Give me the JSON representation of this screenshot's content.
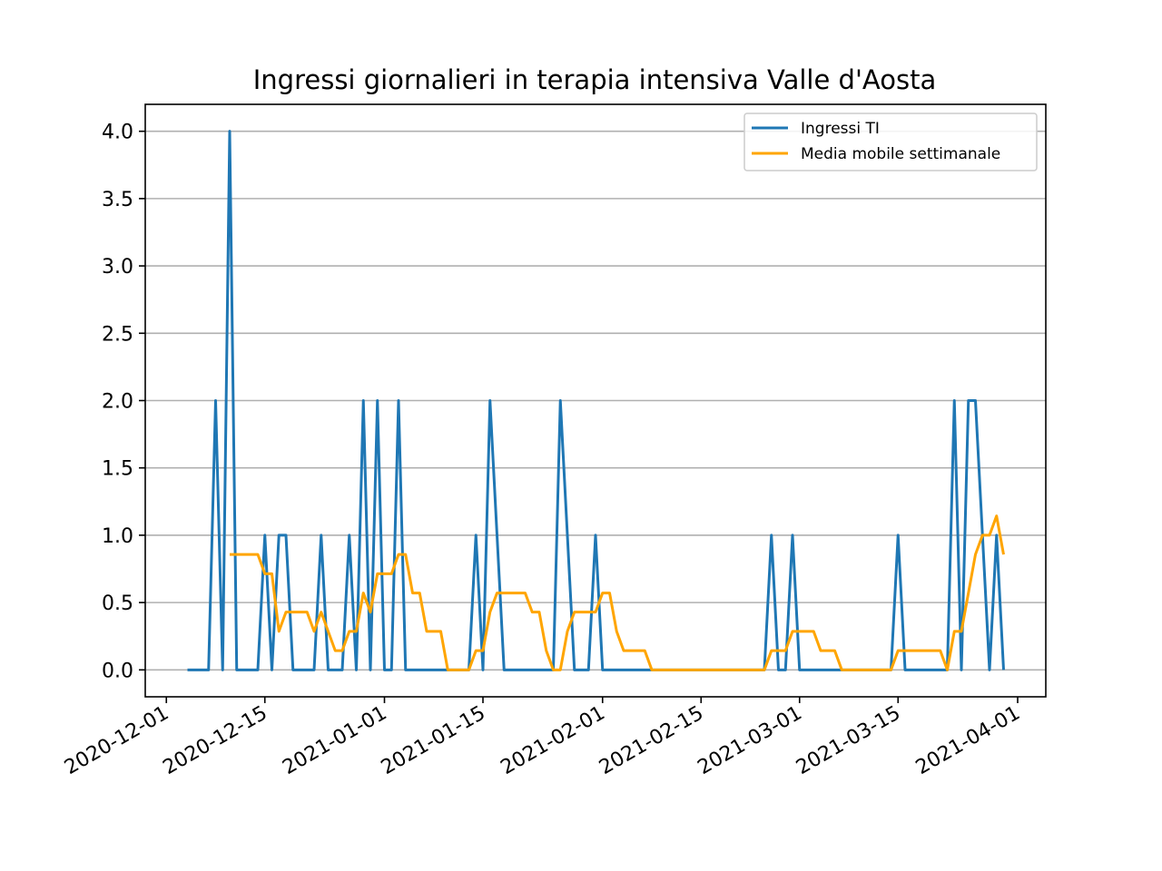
{
  "chart_data": {
    "type": "line",
    "title": "Ingressi giornalieri in terapia intensiva Valle d'Aosta",
    "xlabel": "",
    "ylabel": "",
    "x_axis_type": "date",
    "xlim": [
      "2020-11-28",
      "2021-04-05"
    ],
    "ylim": [
      -0.2,
      4.2
    ],
    "grid": "horizontal",
    "legend_position": "top-right",
    "x_ticks": [
      "2020-12-01",
      "2020-12-15",
      "2021-01-01",
      "2021-01-15",
      "2021-02-01",
      "2021-02-15",
      "2021-03-01",
      "2021-03-15",
      "2021-04-01"
    ],
    "y_ticks": [
      "0.0",
      "0.5",
      "1.0",
      "1.5",
      "2.0",
      "2.5",
      "3.0",
      "3.5",
      "4.0"
    ],
    "series": [
      {
        "name": "Ingressi TI",
        "color": "#1f77b4",
        "points": [
          [
            "2020-12-04",
            0
          ],
          [
            "2020-12-05",
            0
          ],
          [
            "2020-12-06",
            0
          ],
          [
            "2020-12-07",
            0
          ],
          [
            "2020-12-08",
            2
          ],
          [
            "2020-12-09",
            0
          ],
          [
            "2020-12-10",
            4
          ],
          [
            "2020-12-11",
            0
          ],
          [
            "2020-12-12",
            0
          ],
          [
            "2020-12-13",
            0
          ],
          [
            "2020-12-14",
            0
          ],
          [
            "2020-12-15",
            1
          ],
          [
            "2020-12-16",
            0
          ],
          [
            "2020-12-17",
            1
          ],
          [
            "2020-12-18",
            1
          ],
          [
            "2020-12-19",
            0
          ],
          [
            "2020-12-20",
            0
          ],
          [
            "2020-12-21",
            0
          ],
          [
            "2020-12-22",
            0
          ],
          [
            "2020-12-23",
            1
          ],
          [
            "2020-12-24",
            0
          ],
          [
            "2020-12-25",
            0
          ],
          [
            "2020-12-26",
            0
          ],
          [
            "2020-12-27",
            1
          ],
          [
            "2020-12-28",
            0
          ],
          [
            "2020-12-29",
            2
          ],
          [
            "2020-12-30",
            0
          ],
          [
            "2020-12-31",
            2
          ],
          [
            "2021-01-01",
            0
          ],
          [
            "2021-01-02",
            0
          ],
          [
            "2021-01-03",
            2
          ],
          [
            "2021-01-04",
            0
          ],
          [
            "2021-01-05",
            0
          ],
          [
            "2021-01-06",
            0
          ],
          [
            "2021-01-07",
            0
          ],
          [
            "2021-01-08",
            0
          ],
          [
            "2021-01-09",
            0
          ],
          [
            "2021-01-10",
            0
          ],
          [
            "2021-01-11",
            0
          ],
          [
            "2021-01-12",
            0
          ],
          [
            "2021-01-13",
            0
          ],
          [
            "2021-01-14",
            1
          ],
          [
            "2021-01-15",
            0
          ],
          [
            "2021-01-16",
            2
          ],
          [
            "2021-01-17",
            1
          ],
          [
            "2021-01-18",
            0
          ],
          [
            "2021-01-19",
            0
          ],
          [
            "2021-01-20",
            0
          ],
          [
            "2021-01-21",
            0
          ],
          [
            "2021-01-22",
            0
          ],
          [
            "2021-01-23",
            0
          ],
          [
            "2021-01-24",
            0
          ],
          [
            "2021-01-25",
            0
          ],
          [
            "2021-01-26",
            2
          ],
          [
            "2021-01-27",
            1
          ],
          [
            "2021-01-28",
            0
          ],
          [
            "2021-01-29",
            0
          ],
          [
            "2021-01-30",
            0
          ],
          [
            "2021-01-31",
            1
          ],
          [
            "2021-02-01",
            0
          ],
          [
            "2021-02-02",
            0
          ],
          [
            "2021-02-03",
            0
          ],
          [
            "2021-02-04",
            0
          ],
          [
            "2021-02-05",
            0
          ],
          [
            "2021-02-06",
            0
          ],
          [
            "2021-02-07",
            0
          ],
          [
            "2021-02-08",
            0
          ],
          [
            "2021-02-09",
            0
          ],
          [
            "2021-02-10",
            0
          ],
          [
            "2021-02-11",
            0
          ],
          [
            "2021-02-12",
            0
          ],
          [
            "2021-02-13",
            0
          ],
          [
            "2021-02-14",
            0
          ],
          [
            "2021-02-15",
            0
          ],
          [
            "2021-02-16",
            0
          ],
          [
            "2021-02-17",
            0
          ],
          [
            "2021-02-18",
            0
          ],
          [
            "2021-02-19",
            0
          ],
          [
            "2021-02-20",
            0
          ],
          [
            "2021-02-21",
            0
          ],
          [
            "2021-02-22",
            0
          ],
          [
            "2021-02-23",
            0
          ],
          [
            "2021-02-24",
            0
          ],
          [
            "2021-02-25",
            1
          ],
          [
            "2021-02-26",
            0
          ],
          [
            "2021-02-27",
            0
          ],
          [
            "2021-02-28",
            1
          ],
          [
            "2021-03-01",
            0
          ],
          [
            "2021-03-02",
            0
          ],
          [
            "2021-03-03",
            0
          ],
          [
            "2021-03-04",
            0
          ],
          [
            "2021-03-05",
            0
          ],
          [
            "2021-03-06",
            0
          ],
          [
            "2021-03-07",
            0
          ],
          [
            "2021-03-08",
            0
          ],
          [
            "2021-03-09",
            0
          ],
          [
            "2021-03-10",
            0
          ],
          [
            "2021-03-11",
            0
          ],
          [
            "2021-03-12",
            0
          ],
          [
            "2021-03-13",
            0
          ],
          [
            "2021-03-14",
            0
          ],
          [
            "2021-03-15",
            1
          ],
          [
            "2021-03-16",
            0
          ],
          [
            "2021-03-17",
            0
          ],
          [
            "2021-03-18",
            0
          ],
          [
            "2021-03-19",
            0
          ],
          [
            "2021-03-20",
            0
          ],
          [
            "2021-03-21",
            0
          ],
          [
            "2021-03-22",
            0
          ],
          [
            "2021-03-23",
            2
          ],
          [
            "2021-03-24",
            0
          ],
          [
            "2021-03-25",
            2
          ],
          [
            "2021-03-26",
            2
          ],
          [
            "2021-03-27",
            1
          ],
          [
            "2021-03-28",
            0
          ],
          [
            "2021-03-29",
            1
          ],
          [
            "2021-03-30",
            0
          ]
        ]
      },
      {
        "name": "Media mobile settimanale",
        "color": "#ffa500",
        "points": [
          [
            "2020-12-10",
            0.857
          ],
          [
            "2020-12-11",
            0.857
          ],
          [
            "2020-12-12",
            0.857
          ],
          [
            "2020-12-13",
            0.857
          ],
          [
            "2020-12-14",
            0.857
          ],
          [
            "2020-12-15",
            0.714
          ],
          [
            "2020-12-16",
            0.714
          ],
          [
            "2020-12-17",
            0.286
          ],
          [
            "2020-12-18",
            0.429
          ],
          [
            "2020-12-19",
            0.429
          ],
          [
            "2020-12-20",
            0.429
          ],
          [
            "2020-12-21",
            0.429
          ],
          [
            "2020-12-22",
            0.286
          ],
          [
            "2020-12-23",
            0.429
          ],
          [
            "2020-12-24",
            0.286
          ],
          [
            "2020-12-25",
            0.143
          ],
          [
            "2020-12-26",
            0.143
          ],
          [
            "2020-12-27",
            0.286
          ],
          [
            "2020-12-28",
            0.286
          ],
          [
            "2020-12-29",
            0.571
          ],
          [
            "2020-12-30",
            0.429
          ],
          [
            "2020-12-31",
            0.714
          ],
          [
            "2021-01-01",
            0.714
          ],
          [
            "2021-01-02",
            0.714
          ],
          [
            "2021-01-03",
            0.857
          ],
          [
            "2021-01-04",
            0.857
          ],
          [
            "2021-01-05",
            0.571
          ],
          [
            "2021-01-06",
            0.571
          ],
          [
            "2021-01-07",
            0.286
          ],
          [
            "2021-01-08",
            0.286
          ],
          [
            "2021-01-09",
            0.286
          ],
          [
            "2021-01-10",
            0
          ],
          [
            "2021-01-11",
            0
          ],
          [
            "2021-01-12",
            0
          ],
          [
            "2021-01-13",
            0
          ],
          [
            "2021-01-14",
            0.143
          ],
          [
            "2021-01-15",
            0.143
          ],
          [
            "2021-01-16",
            0.429
          ],
          [
            "2021-01-17",
            0.571
          ],
          [
            "2021-01-18",
            0.571
          ],
          [
            "2021-01-19",
            0.571
          ],
          [
            "2021-01-20",
            0.571
          ],
          [
            "2021-01-21",
            0.571
          ],
          [
            "2021-01-22",
            0.429
          ],
          [
            "2021-01-23",
            0.429
          ],
          [
            "2021-01-24",
            0.143
          ],
          [
            "2021-01-25",
            0
          ],
          [
            "2021-01-26",
            0
          ],
          [
            "2021-01-27",
            0.286
          ],
          [
            "2021-01-28",
            0.429
          ],
          [
            "2021-01-29",
            0.429
          ],
          [
            "2021-01-30",
            0.429
          ],
          [
            "2021-01-31",
            0.429
          ],
          [
            "2021-02-01",
            0.571
          ],
          [
            "2021-02-02",
            0.571
          ],
          [
            "2021-02-03",
            0.286
          ],
          [
            "2021-02-04",
            0.143
          ],
          [
            "2021-02-05",
            0.143
          ],
          [
            "2021-02-06",
            0.143
          ],
          [
            "2021-02-07",
            0.143
          ],
          [
            "2021-02-08",
            0
          ],
          [
            "2021-02-09",
            0
          ],
          [
            "2021-02-10",
            0
          ],
          [
            "2021-02-11",
            0
          ],
          [
            "2021-02-12",
            0
          ],
          [
            "2021-02-13",
            0
          ],
          [
            "2021-02-14",
            0
          ],
          [
            "2021-02-15",
            0
          ],
          [
            "2021-02-16",
            0
          ],
          [
            "2021-02-17",
            0
          ],
          [
            "2021-02-18",
            0
          ],
          [
            "2021-02-19",
            0
          ],
          [
            "2021-02-20",
            0
          ],
          [
            "2021-02-21",
            0
          ],
          [
            "2021-02-22",
            0
          ],
          [
            "2021-02-23",
            0
          ],
          [
            "2021-02-24",
            0
          ],
          [
            "2021-02-25",
            0.143
          ],
          [
            "2021-02-26",
            0.143
          ],
          [
            "2021-02-27",
            0.143
          ],
          [
            "2021-02-28",
            0.286
          ],
          [
            "2021-03-01",
            0.286
          ],
          [
            "2021-03-02",
            0.286
          ],
          [
            "2021-03-03",
            0.286
          ],
          [
            "2021-03-04",
            0.143
          ],
          [
            "2021-03-05",
            0.143
          ],
          [
            "2021-03-06",
            0.143
          ],
          [
            "2021-03-07",
            0
          ],
          [
            "2021-03-08",
            0
          ],
          [
            "2021-03-09",
            0
          ],
          [
            "2021-03-10",
            0
          ],
          [
            "2021-03-11",
            0
          ],
          [
            "2021-03-12",
            0
          ],
          [
            "2021-03-13",
            0
          ],
          [
            "2021-03-14",
            0
          ],
          [
            "2021-03-15",
            0.143
          ],
          [
            "2021-03-16",
            0.143
          ],
          [
            "2021-03-17",
            0.143
          ],
          [
            "2021-03-18",
            0.143
          ],
          [
            "2021-03-19",
            0.143
          ],
          [
            "2021-03-20",
            0.143
          ],
          [
            "2021-03-21",
            0.143
          ],
          [
            "2021-03-22",
            0
          ],
          [
            "2021-03-23",
            0.286
          ],
          [
            "2021-03-24",
            0.286
          ],
          [
            "2021-03-25",
            0.571
          ],
          [
            "2021-03-26",
            0.857
          ],
          [
            "2021-03-27",
            1.0
          ],
          [
            "2021-03-28",
            1.0
          ],
          [
            "2021-03-29",
            1.143
          ],
          [
            "2021-03-30",
            0.857
          ]
        ]
      }
    ]
  }
}
